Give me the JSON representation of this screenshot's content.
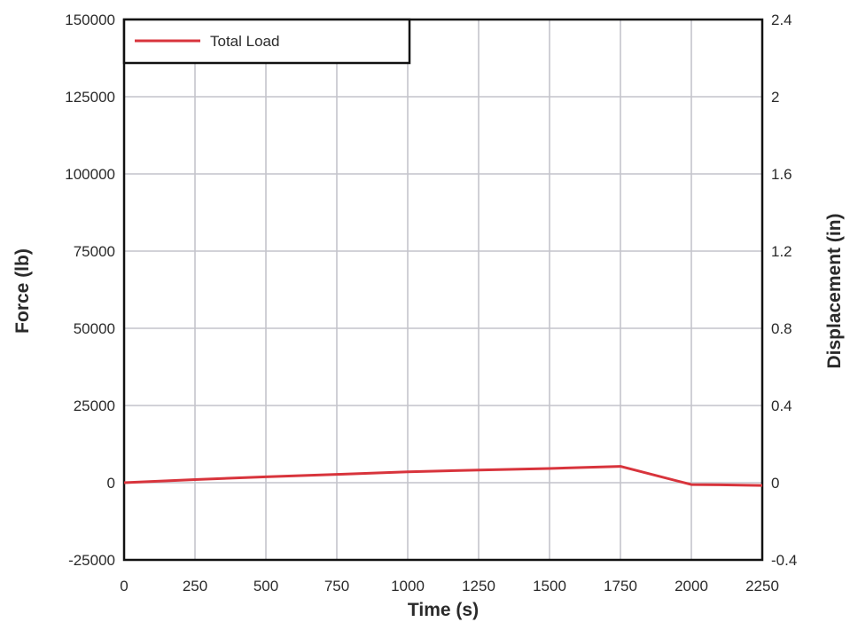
{
  "chart_data": {
    "type": "line",
    "title": "",
    "xlabel": "Time (s)",
    "ylabel": "Force (lb)",
    "y2label": "Displacement (in)",
    "xlim": [
      0,
      2250
    ],
    "ylim": [
      -25000,
      150000
    ],
    "y2lim": [
      -0.4,
      2.4
    ],
    "x_ticks": [
      "0",
      "250",
      "500",
      "750",
      "1000",
      "1250",
      "1500",
      "1750",
      "2000",
      "2250"
    ],
    "y_ticks": [
      "-25000",
      "0",
      "25000",
      "50000",
      "75000",
      "100000",
      "125000",
      "150000"
    ],
    "y2_ticks": [
      "-0.4",
      "0",
      "0.4",
      "0.8",
      "1.2",
      "1.6",
      "2",
      "2.4"
    ],
    "grid": true,
    "legend_position": "top-left",
    "series": [
      {
        "name": "Total Load",
        "color": "#d8343c",
        "x": [
          0,
          250,
          500,
          750,
          1000,
          1250,
          1500,
          1750,
          2000,
          2100,
          2250
        ],
        "y": [
          0,
          1000,
          1900,
          2700,
          3500,
          4100,
          4600,
          5300,
          -600,
          -700,
          -900
        ]
      }
    ]
  }
}
